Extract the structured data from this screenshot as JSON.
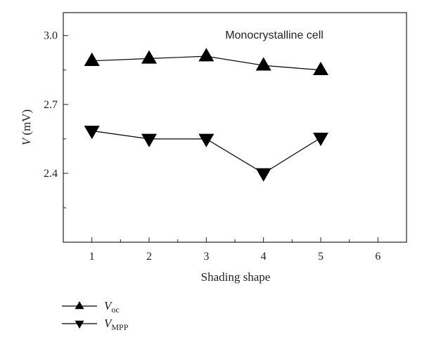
{
  "chart_data": {
    "type": "line",
    "annotation": "Monocrystalline cell",
    "xlabel": "Shading shape",
    "ylabel": {
      "var": "V",
      "unit": " (mV)"
    },
    "xlim": [
      0.5,
      6.5
    ],
    "ylim": [
      2.1,
      3.1
    ],
    "xticks": [
      1,
      2,
      3,
      4,
      5,
      6
    ],
    "yticks": [
      2.4,
      2.7,
      3.0
    ],
    "ytick_labels": [
      "2.4",
      "2.7",
      "3.0"
    ],
    "grid": false,
    "legend_position": "bottom-left",
    "x": [
      1,
      2,
      3,
      4,
      5
    ],
    "series": [
      {
        "name": "V",
        "sub": "oc",
        "marker": "triangle-up",
        "color": "#000000",
        "values": [
          2.89,
          2.9,
          2.91,
          2.87,
          2.85
        ]
      },
      {
        "name": "V",
        "sub": "MPP",
        "marker": "triangle-down",
        "color": "#000000",
        "values": [
          2.585,
          2.55,
          2.55,
          2.4,
          2.555
        ]
      }
    ]
  }
}
